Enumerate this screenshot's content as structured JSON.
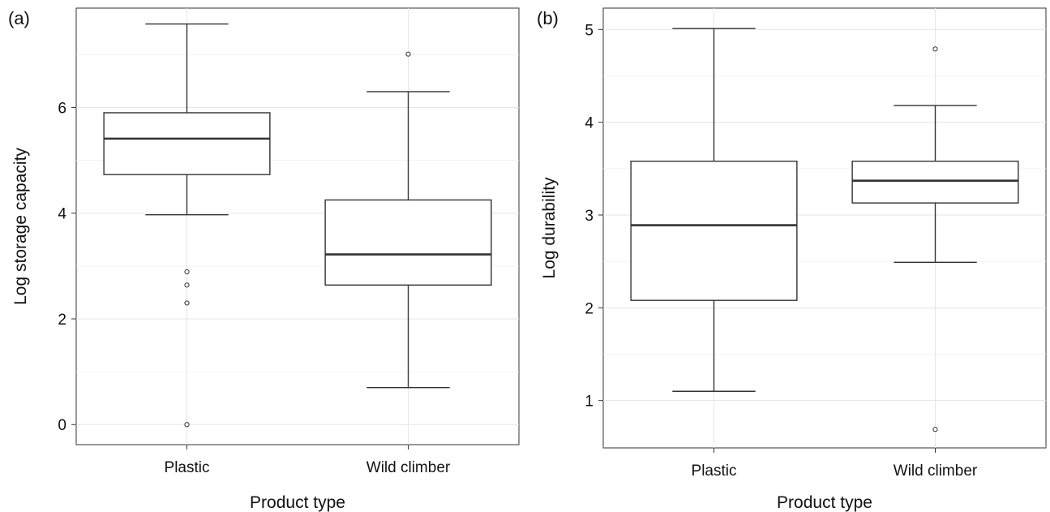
{
  "chart_data": [
    {
      "type": "box",
      "panel_label": "(a)",
      "xlabel": "Product type",
      "ylabel": "Log storage capacity",
      "categories": [
        "Plastic",
        "Wild climber"
      ],
      "yticks": [
        0,
        2,
        4,
        6
      ],
      "ylim": [
        -0.38,
        7.88
      ],
      "boxes": [
        {
          "category": "Plastic",
          "whisker_low": 3.97,
          "q1": 4.73,
          "median": 5.41,
          "q3": 5.9,
          "whisker_high": 7.58,
          "outliers": [
            2.89,
            2.64,
            2.3,
            0.0
          ]
        },
        {
          "category": "Wild climber",
          "whisker_low": 0.7,
          "q1": 2.64,
          "median": 3.22,
          "q3": 4.25,
          "whisker_high": 6.3,
          "outliers": [
            7.01
          ]
        }
      ]
    },
    {
      "type": "box",
      "panel_label": "(b)",
      "xlabel": "Product type",
      "ylabel": "Log durability",
      "categories": [
        "Plastic",
        "Wild climber"
      ],
      "yticks": [
        1,
        2,
        3,
        4,
        5
      ],
      "ylim": [
        0.49,
        5.23
      ],
      "boxes": [
        {
          "category": "Plastic",
          "whisker_low": 1.1,
          "q1": 2.08,
          "median": 2.89,
          "q3": 3.58,
          "whisker_high": 5.01,
          "outliers": []
        },
        {
          "category": "Wild climber",
          "whisker_low": 2.49,
          "q1": 3.13,
          "median": 3.37,
          "q3": 3.58,
          "whisker_high": 4.18,
          "outliers": [
            4.79,
            0.69
          ]
        }
      ]
    }
  ]
}
